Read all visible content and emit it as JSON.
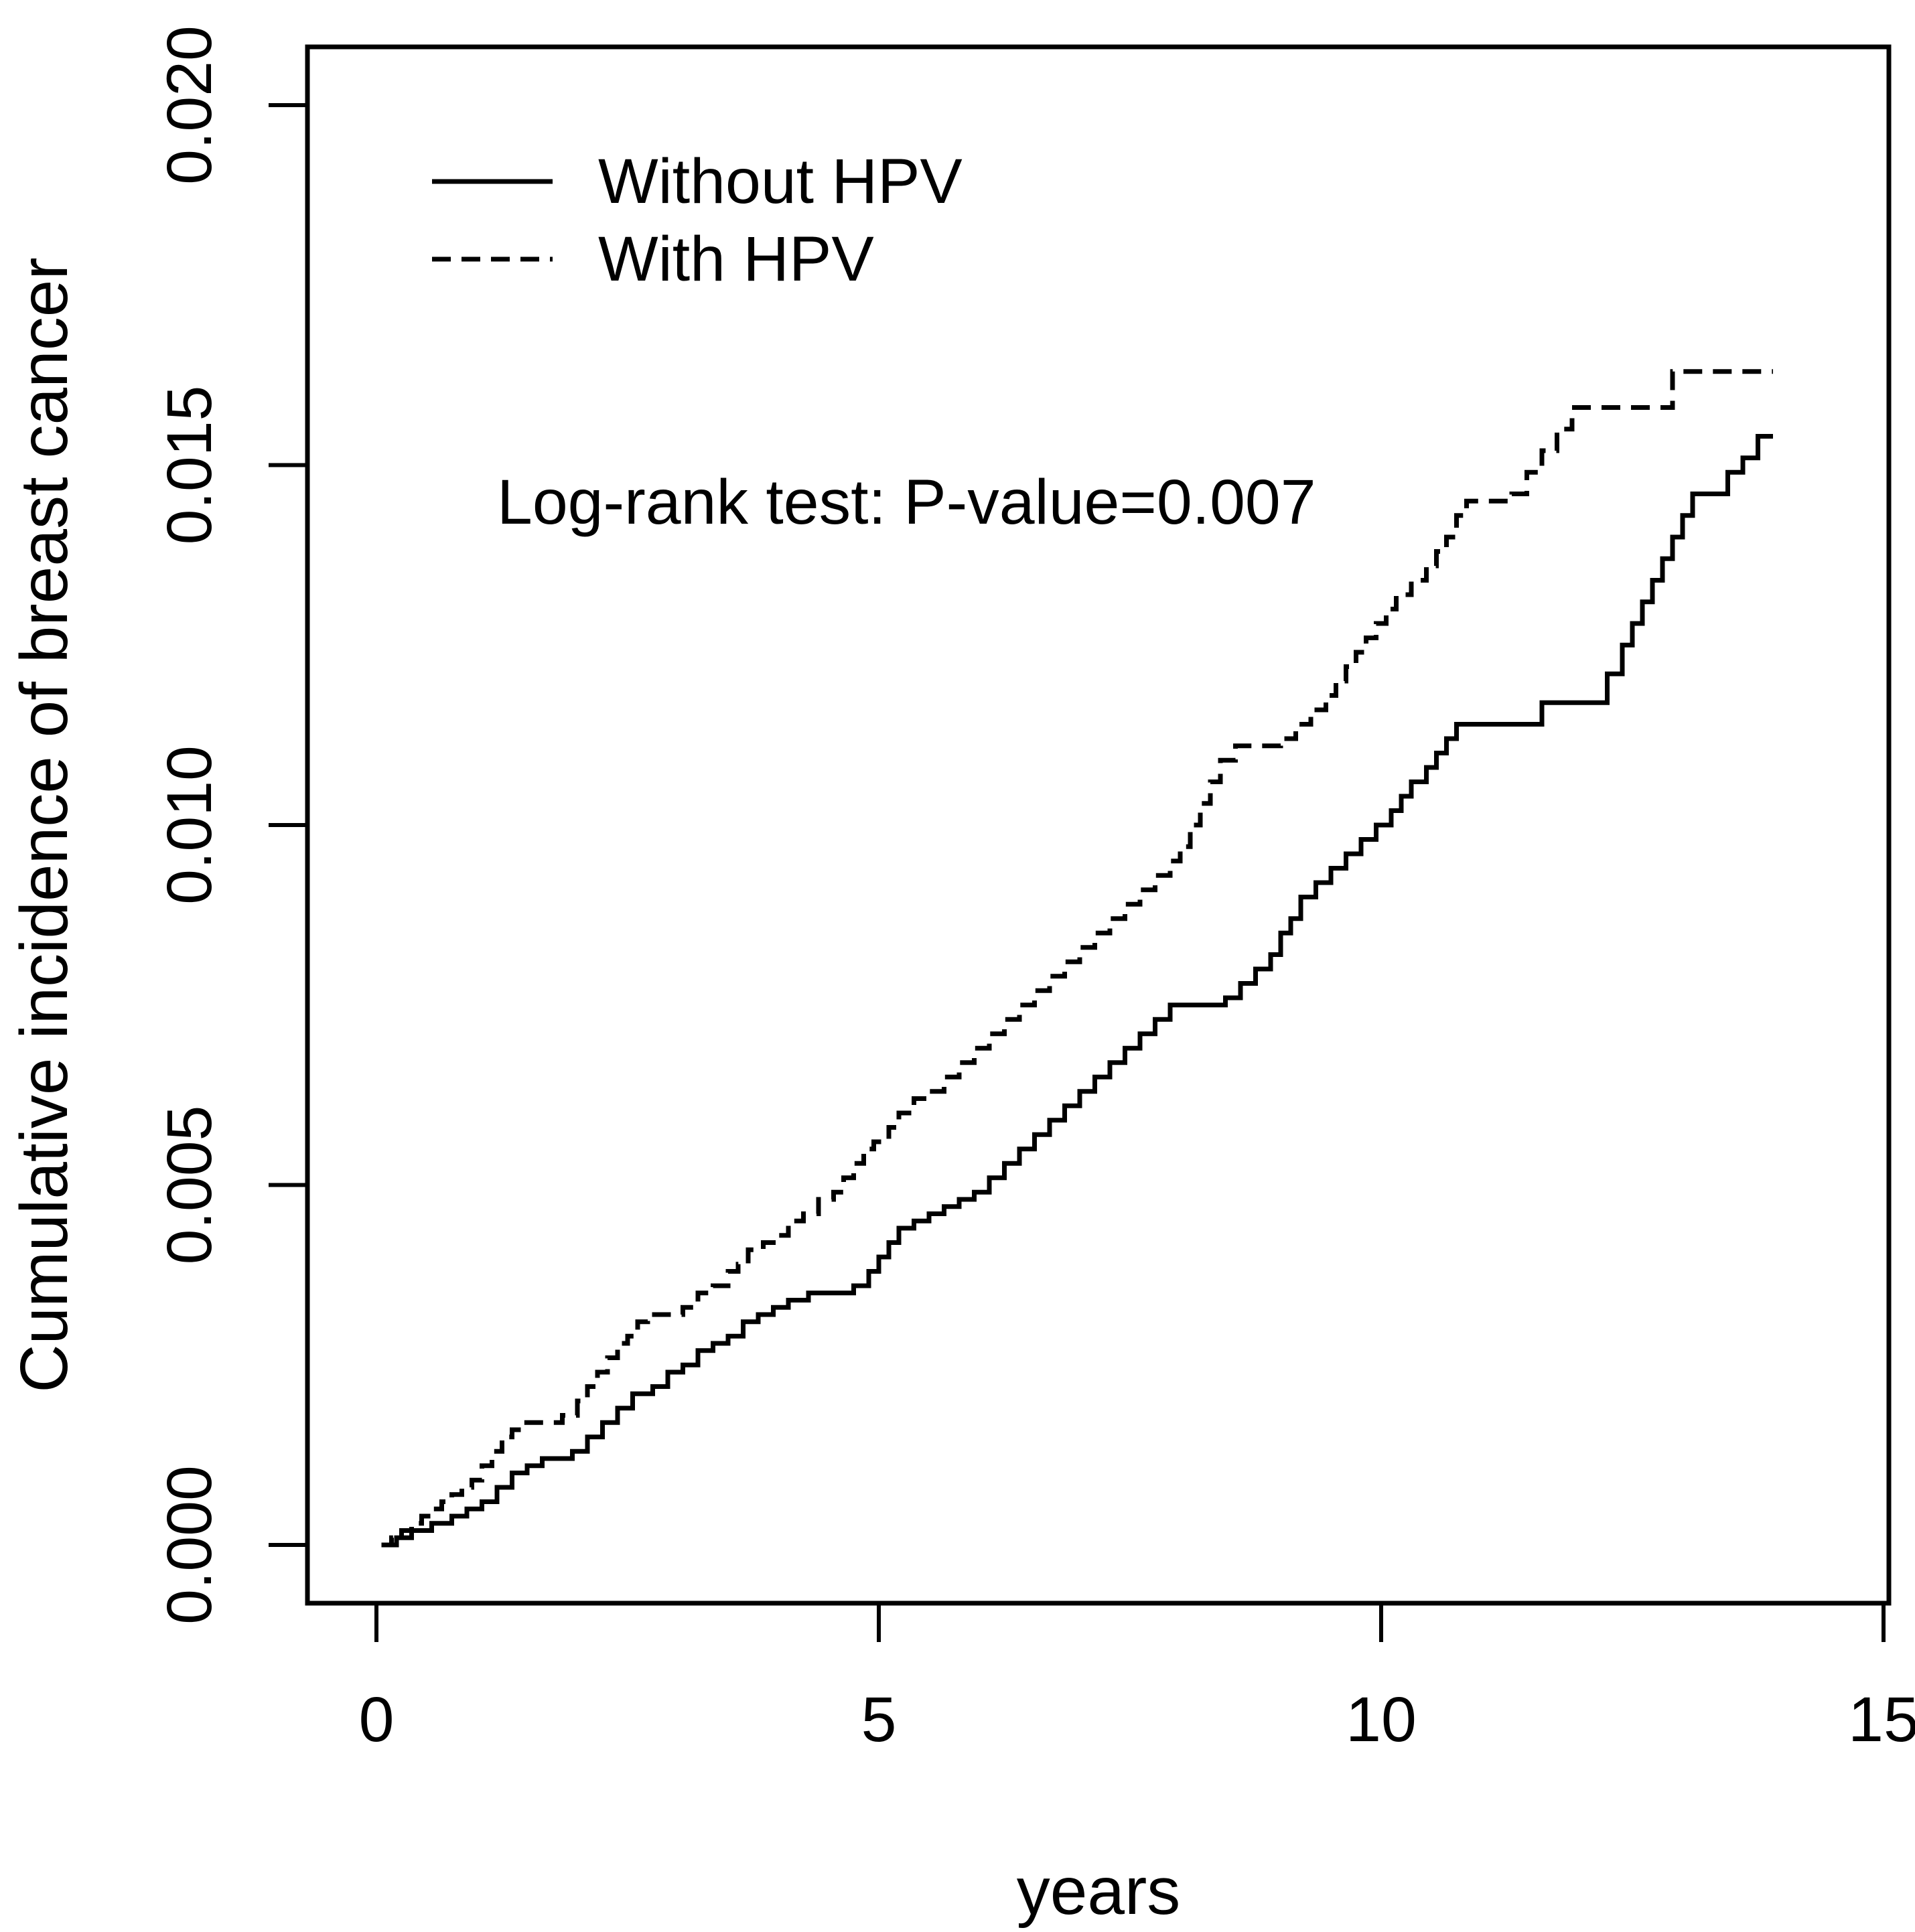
{
  "figure": {
    "background": "#ffffff",
    "line_color": "#000000"
  },
  "chart_data": {
    "type": "line",
    "subtype": "step-function-cumulative-incidence",
    "title": "",
    "xlabel": "years",
    "ylabel": "Cumulative incidence of breast cancer",
    "annotation": "Log-rank test: P-value=0.007",
    "xlim": [
      0,
      15
    ],
    "ylim": [
      0.0,
      0.02
    ],
    "grid": false,
    "legend_position": "top-left-inside",
    "x_ticks": [
      {
        "value": 0,
        "label": "0"
      },
      {
        "value": 5,
        "label": "5"
      },
      {
        "value": 10,
        "label": "10"
      },
      {
        "value": 15,
        "label": "15"
      }
    ],
    "y_ticks": [
      {
        "value": 0.0,
        "label": "0.000"
      },
      {
        "value": 0.005,
        "label": "0.005"
      },
      {
        "value": 0.01,
        "label": "0.010"
      },
      {
        "value": 0.015,
        "label": "0.015"
      },
      {
        "value": 0.02,
        "label": "0.020"
      }
    ],
    "series": [
      {
        "name": "Without HPV",
        "style": "solid",
        "color": "#000000",
        "points": [
          [
            0.05,
            0.0
          ],
          [
            0.2,
            0.0001
          ],
          [
            0.35,
            0.0002
          ],
          [
            0.55,
            0.0003
          ],
          [
            0.75,
            0.0004
          ],
          [
            0.9,
            0.0005
          ],
          [
            1.05,
            0.0006
          ],
          [
            1.2,
            0.0008
          ],
          [
            1.35,
            0.001
          ],
          [
            1.5,
            0.0011
          ],
          [
            1.65,
            0.0012
          ],
          [
            1.95,
            0.0013
          ],
          [
            2.1,
            0.0015
          ],
          [
            2.25,
            0.0017
          ],
          [
            2.4,
            0.0019
          ],
          [
            2.55,
            0.0021
          ],
          [
            2.75,
            0.0022
          ],
          [
            2.9,
            0.0024
          ],
          [
            3.05,
            0.0025
          ],
          [
            3.2,
            0.0027
          ],
          [
            3.35,
            0.0028
          ],
          [
            3.5,
            0.0029
          ],
          [
            3.65,
            0.0031
          ],
          [
            3.8,
            0.0032
          ],
          [
            3.95,
            0.0033
          ],
          [
            4.1,
            0.0034
          ],
          [
            4.3,
            0.0035
          ],
          [
            4.75,
            0.0036
          ],
          [
            4.9,
            0.0038
          ],
          [
            5.0,
            0.004
          ],
          [
            5.1,
            0.0042
          ],
          [
            5.2,
            0.0044
          ],
          [
            5.35,
            0.0045
          ],
          [
            5.5,
            0.0046
          ],
          [
            5.65,
            0.0047
          ],
          [
            5.8,
            0.0048
          ],
          [
            5.95,
            0.0049
          ],
          [
            6.1,
            0.0051
          ],
          [
            6.25,
            0.0053
          ],
          [
            6.4,
            0.0055
          ],
          [
            6.55,
            0.0057
          ],
          [
            6.7,
            0.0059
          ],
          [
            6.85,
            0.0061
          ],
          [
            7.0,
            0.0063
          ],
          [
            7.15,
            0.0065
          ],
          [
            7.3,
            0.0067
          ],
          [
            7.45,
            0.0069
          ],
          [
            7.6,
            0.0071
          ],
          [
            7.75,
            0.0073
          ],
          [
            7.9,
            0.0075
          ],
          [
            8.45,
            0.0076
          ],
          [
            8.6,
            0.0078
          ],
          [
            8.75,
            0.008
          ],
          [
            8.9,
            0.0082
          ],
          [
            9.0,
            0.0085
          ],
          [
            9.1,
            0.0087
          ],
          [
            9.2,
            0.009
          ],
          [
            9.35,
            0.0092
          ],
          [
            9.5,
            0.0094
          ],
          [
            9.65,
            0.0096
          ],
          [
            9.8,
            0.0098
          ],
          [
            9.95,
            0.01
          ],
          [
            10.1,
            0.0102
          ],
          [
            10.2,
            0.0104
          ],
          [
            10.3,
            0.0106
          ],
          [
            10.45,
            0.0108
          ],
          [
            10.55,
            0.011
          ],
          [
            10.65,
            0.0112
          ],
          [
            10.75,
            0.0114
          ],
          [
            11.5,
            0.0114
          ],
          [
            11.6,
            0.0117
          ],
          [
            12.15,
            0.0117
          ],
          [
            12.25,
            0.0121
          ],
          [
            12.4,
            0.0125
          ],
          [
            12.5,
            0.0128
          ],
          [
            12.6,
            0.0131
          ],
          [
            12.7,
            0.0134
          ],
          [
            12.8,
            0.0137
          ],
          [
            12.9,
            0.014
          ],
          [
            13.0,
            0.0143
          ],
          [
            13.1,
            0.0146
          ],
          [
            13.35,
            0.0146
          ],
          [
            13.45,
            0.0149
          ],
          [
            13.6,
            0.0151
          ],
          [
            13.75,
            0.0154
          ],
          [
            13.9,
            0.0154
          ]
        ]
      },
      {
        "name": "With HPV",
        "style": "dashed",
        "color": "#000000",
        "points": [
          [
            0.05,
            0.0
          ],
          [
            0.15,
            0.0001
          ],
          [
            0.25,
            0.0002
          ],
          [
            0.35,
            0.0003
          ],
          [
            0.45,
            0.0004
          ],
          [
            0.55,
            0.0005
          ],
          [
            0.65,
            0.0006
          ],
          [
            0.75,
            0.0007
          ],
          [
            0.85,
            0.0008
          ],
          [
            0.95,
            0.0009
          ],
          [
            1.05,
            0.0011
          ],
          [
            1.15,
            0.0013
          ],
          [
            1.25,
            0.0015
          ],
          [
            1.35,
            0.0016
          ],
          [
            1.45,
            0.0017
          ],
          [
            1.85,
            0.0018
          ],
          [
            2.0,
            0.002
          ],
          [
            2.1,
            0.0022
          ],
          [
            2.2,
            0.0024
          ],
          [
            2.3,
            0.0026
          ],
          [
            2.4,
            0.0028
          ],
          [
            2.5,
            0.0029
          ],
          [
            2.6,
            0.0031
          ],
          [
            2.7,
            0.0032
          ],
          [
            3.05,
            0.0033
          ],
          [
            3.2,
            0.0035
          ],
          [
            3.35,
            0.0036
          ],
          [
            3.5,
            0.0038
          ],
          [
            3.6,
            0.0039
          ],
          [
            3.7,
            0.0041
          ],
          [
            3.85,
            0.0042
          ],
          [
            3.95,
            0.0043
          ],
          [
            4.1,
            0.0045
          ],
          [
            4.25,
            0.0046
          ],
          [
            4.4,
            0.0048
          ],
          [
            4.55,
            0.0049
          ],
          [
            4.65,
            0.0051
          ],
          [
            4.75,
            0.0053
          ],
          [
            4.85,
            0.0055
          ],
          [
            4.95,
            0.0056
          ],
          [
            5.1,
            0.0058
          ],
          [
            5.2,
            0.006
          ],
          [
            5.35,
            0.0062
          ],
          [
            5.5,
            0.0063
          ],
          [
            5.65,
            0.0065
          ],
          [
            5.8,
            0.0067
          ],
          [
            5.95,
            0.0069
          ],
          [
            6.1,
            0.0071
          ],
          [
            6.25,
            0.0073
          ],
          [
            6.4,
            0.0075
          ],
          [
            6.55,
            0.0077
          ],
          [
            6.7,
            0.0079
          ],
          [
            6.85,
            0.0081
          ],
          [
            7.0,
            0.0083
          ],
          [
            7.15,
            0.0085
          ],
          [
            7.3,
            0.0087
          ],
          [
            7.45,
            0.0089
          ],
          [
            7.6,
            0.0091
          ],
          [
            7.75,
            0.0093
          ],
          [
            7.9,
            0.0095
          ],
          [
            8.0,
            0.0097
          ],
          [
            8.1,
            0.01
          ],
          [
            8.2,
            0.0103
          ],
          [
            8.3,
            0.0106
          ],
          [
            8.4,
            0.0109
          ],
          [
            8.55,
            0.0111
          ],
          [
            9.0,
            0.0112
          ],
          [
            9.15,
            0.0114
          ],
          [
            9.3,
            0.0116
          ],
          [
            9.45,
            0.0118
          ],
          [
            9.55,
            0.012
          ],
          [
            9.65,
            0.0122
          ],
          [
            9.75,
            0.0124
          ],
          [
            9.85,
            0.0126
          ],
          [
            9.95,
            0.0128
          ],
          [
            10.05,
            0.013
          ],
          [
            10.15,
            0.0132
          ],
          [
            10.3,
            0.0134
          ],
          [
            10.45,
            0.0136
          ],
          [
            10.55,
            0.0138
          ],
          [
            10.65,
            0.014
          ],
          [
            10.75,
            0.0143
          ],
          [
            10.85,
            0.0145
          ],
          [
            11.3,
            0.0146
          ],
          [
            11.45,
            0.0149
          ],
          [
            11.6,
            0.0152
          ],
          [
            11.75,
            0.0155
          ],
          [
            11.9,
            0.0158
          ],
          [
            12.8,
            0.0158
          ],
          [
            12.9,
            0.0163
          ],
          [
            13.9,
            0.0163
          ]
        ]
      }
    ]
  }
}
